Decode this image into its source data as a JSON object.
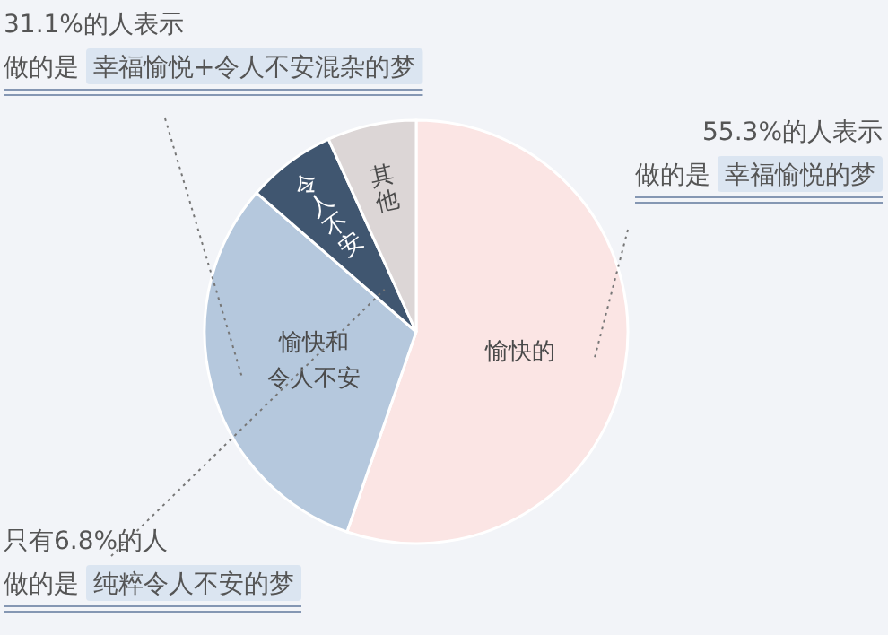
{
  "chart_data": {
    "type": "pie",
    "categories": [
      "愉快的",
      "愉快和令人不安",
      "令人不安",
      "其他"
    ],
    "values": [
      55.3,
      31.1,
      6.8,
      6.8
    ],
    "colors": [
      "#fbe5e4",
      "#b5c8dd",
      "#405670",
      "#dcd6d6"
    ],
    "annotations": [
      "31.1%的人表示",
      "做的是",
      "幸福愉悦+令人不安混杂的梦",
      "55.3%的人表示",
      "做的是",
      "幸福愉悦的梦",
      "只有6.8%的人",
      "做的是",
      "纯粹令人不安的梦"
    ]
  }
}
